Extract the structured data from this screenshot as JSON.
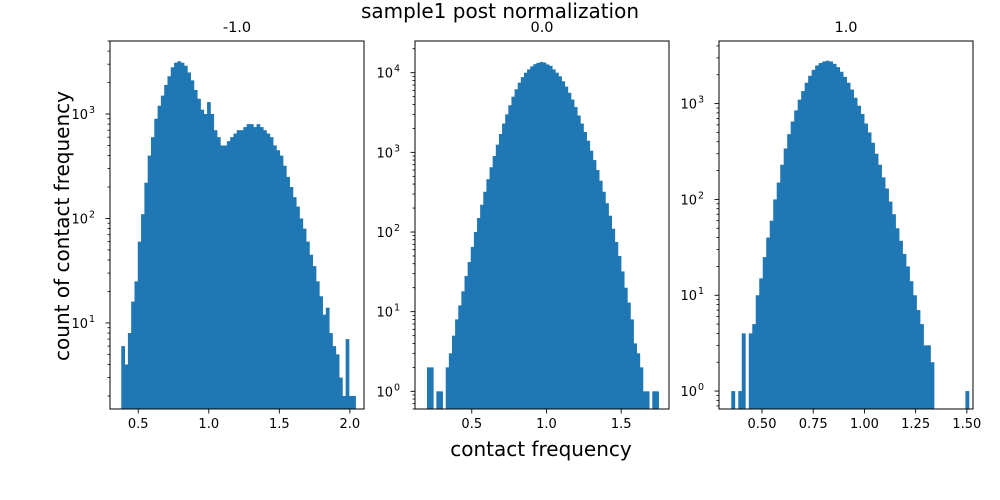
{
  "figure": {
    "title": "sample1 post normalization",
    "xlabel": "contact frequency",
    "ylabel": "count of contact frequency",
    "bar_color": "#1f77b4"
  },
  "chart_data": [
    {
      "type": "bar",
      "title": "-1.0",
      "xlim": [
        0.3,
        2.1
      ],
      "ylim": [
        1.5,
        5000
      ],
      "yscale": "log",
      "xticks": [
        0.5,
        1.0,
        1.5,
        2.0
      ],
      "xtick_labels": [
        "0.5",
        "1.0",
        "1.5",
        "2.0"
      ],
      "yticks": [
        10,
        100,
        1000
      ],
      "ytick_labels": [
        "10",
        "10",
        "10"
      ],
      "ytick_exponents": [
        "1",
        "2",
        "3"
      ],
      "grid": false,
      "bin_edges_range": [
        0.38,
        2.04
      ],
      "counts": [
        6,
        4,
        8,
        16,
        25,
        60,
        110,
        220,
        400,
        600,
        900,
        1200,
        1500,
        1900,
        2300,
        2800,
        3100,
        3200,
        3100,
        2900,
        2500,
        2100,
        1700,
        1400,
        1100,
        1000,
        1300,
        1000,
        700,
        600,
        500,
        500,
        550,
        600,
        650,
        700,
        700,
        750,
        800,
        800,
        750,
        800,
        750,
        700,
        650,
        600,
        500,
        450,
        400,
        320,
        250,
        200,
        160,
        130,
        100,
        80,
        60,
        45,
        35,
        25,
        18,
        12,
        14,
        8,
        6,
        5,
        3,
        2,
        7,
        2,
        2
      ]
    },
    {
      "type": "bar",
      "title": "0.0",
      "xlim": [
        0.12,
        1.82
      ],
      "ylim": [
        0.6,
        25000
      ],
      "yscale": "log",
      "xticks": [
        0.5,
        1.0,
        1.5
      ],
      "xtick_labels": [
        "0.5",
        "1.0",
        "1.5"
      ],
      "yticks": [
        1,
        10,
        100,
        1000,
        10000
      ],
      "ytick_labels": [
        "10",
        "10",
        "10",
        "10",
        "10"
      ],
      "ytick_exponents": [
        "0",
        "1",
        "2",
        "3",
        "4"
      ],
      "grid": false,
      "bin_edges_range": [
        0.2,
        1.75
      ],
      "counts": [
        2,
        2,
        0,
        1,
        1,
        0,
        2,
        3,
        5,
        8,
        12,
        18,
        28,
        42,
        65,
        100,
        150,
        220,
        320,
        460,
        650,
        900,
        1250,
        1700,
        2300,
        3000,
        3900,
        5000,
        6200,
        7500,
        8800,
        10000,
        11000,
        12000,
        12800,
        13300,
        13600,
        13400,
        12700,
        12200,
        11000,
        10000,
        9000,
        7800,
        6700,
        5600,
        4600,
        3700,
        2900,
        2300,
        1800,
        1400,
        1050,
        800,
        600,
        440,
        320,
        230,
        160,
        110,
        75,
        50,
        32,
        20,
        13,
        8,
        4,
        3,
        2,
        1,
        1,
        0,
        1,
        1
      ]
    },
    {
      "type": "bar",
      "title": "1.0",
      "xlim": [
        0.29,
        1.53
      ],
      "ylim": [
        0.65,
        4500
      ],
      "yscale": "log",
      "xticks": [
        0.5,
        0.75,
        1.0,
        1.25,
        1.5
      ],
      "xtick_labels": [
        "0.50",
        "0.75",
        "1.00",
        "1.25",
        "1.50"
      ],
      "yticks": [
        1,
        10,
        100,
        1000
      ],
      "ytick_labels": [
        "10",
        "10",
        "10",
        "10"
      ],
      "ytick_exponents": [
        "0",
        "1",
        "2",
        "3"
      ],
      "grid": false,
      "bin_edges_range": [
        0.35,
        1.51
      ],
      "counts": [
        1,
        0,
        1,
        4,
        0,
        4,
        5,
        10,
        15,
        25,
        40,
        60,
        100,
        150,
        230,
        340,
        480,
        650,
        850,
        1100,
        1350,
        1650,
        1950,
        2250,
        2500,
        2650,
        2750,
        2800,
        2750,
        2600,
        2400,
        2150,
        1900,
        1650,
        1400,
        1150,
        950,
        780,
        620,
        500,
        390,
        300,
        230,
        170,
        130,
        95,
        70,
        50,
        37,
        27,
        20,
        14,
        10,
        7,
        5,
        3,
        3,
        2,
        0,
        0,
        0,
        0,
        0,
        0,
        0,
        0,
        0,
        1
      ]
    }
  ]
}
